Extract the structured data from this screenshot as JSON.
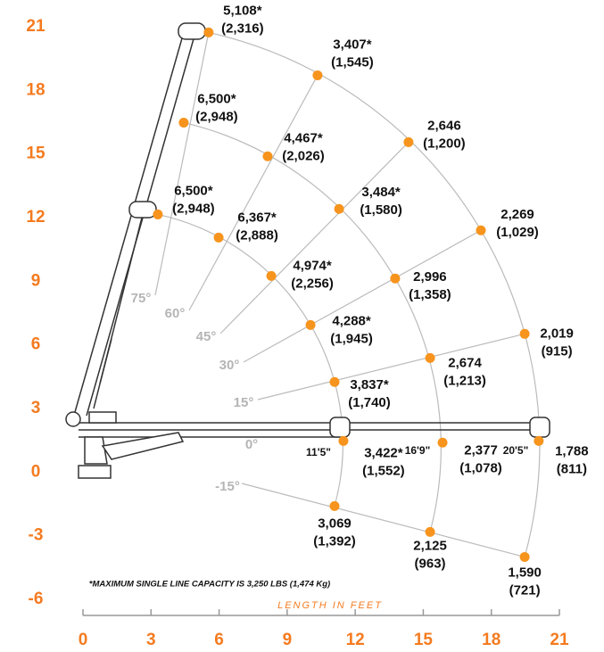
{
  "chart_data": {
    "type": "scatter",
    "x": [
      5.54,
      10.34,
      4.44,
      8.14,
      14.35,
      11.29,
      3.3,
      5.98,
      17.54,
      8.3,
      13.76,
      10.03,
      19.47,
      15.3,
      11.09,
      11.48,
      15.85,
      20.09,
      11.09,
      15.3,
      19.47
    ],
    "y": [
      20.73,
      18.71,
      16.48,
      14.89,
      15.56,
      12.41,
      12.15,
      11.06,
      11.4,
      9.25,
      9.13,
      6.94,
      6.52,
      5.38,
      4.25,
      1.47,
      1.39,
      1.47,
      -1.6,
      -2.82,
      -4.0
    ],
    "values": [
      5108,
      3407,
      6500,
      4467,
      2646,
      3484,
      6500,
      6367,
      2269,
      4974,
      2996,
      4288,
      2019,
      2674,
      3837,
      3422,
      2377,
      1788,
      3069,
      2125,
      1590
    ],
    "value_labels": [
      "5,108*",
      "3,407*",
      "6,500*",
      "4,467*",
      "2,646",
      "3,484*",
      "6,500*",
      "6,367*",
      "2,269",
      "4,974*",
      "2,996",
      "4,288*",
      "2,019",
      "2,674",
      "3,837*",
      "3,422*",
      "2,377",
      "1,788",
      "3,069",
      "2,125",
      "1,590"
    ],
    "kg_labels": [
      "(2,316)",
      "(1,545)",
      "(2,948)",
      "(2,026)",
      "(1,200)",
      "(1,580)",
      "(2,948)",
      "(2,888)",
      "(1,029)",
      "(2,256)",
      "(1,358)",
      "(1,945)",
      "(915)",
      "(1,213)",
      "(1,740)",
      "(1,552)",
      "(1,078)",
      "(811)",
      "(1,392)",
      "(963)",
      "(721)"
    ],
    "color": "#f7941d",
    "xlim": [
      0,
      21
    ],
    "xticks": [
      0,
      3,
      6,
      9,
      12,
      15,
      18,
      21
    ],
    "ylim": [
      -6,
      21
    ],
    "yticks": [
      -6,
      -3,
      0,
      3,
      6,
      9,
      12,
      15,
      18,
      21
    ],
    "xlabel": "LENGTH IN FEET",
    "angle_labels": [
      "75°",
      "60°",
      "45°",
      "30°",
      "15°",
      "0°",
      "-15°"
    ],
    "section_labels": [
      "11'5\"",
      "16'9\"",
      "20'5\""
    ],
    "footnote": "*MAXIMUM SINGLE LINE CAPACITY IS 3,250 LBS (1,474 Kg)"
  }
}
